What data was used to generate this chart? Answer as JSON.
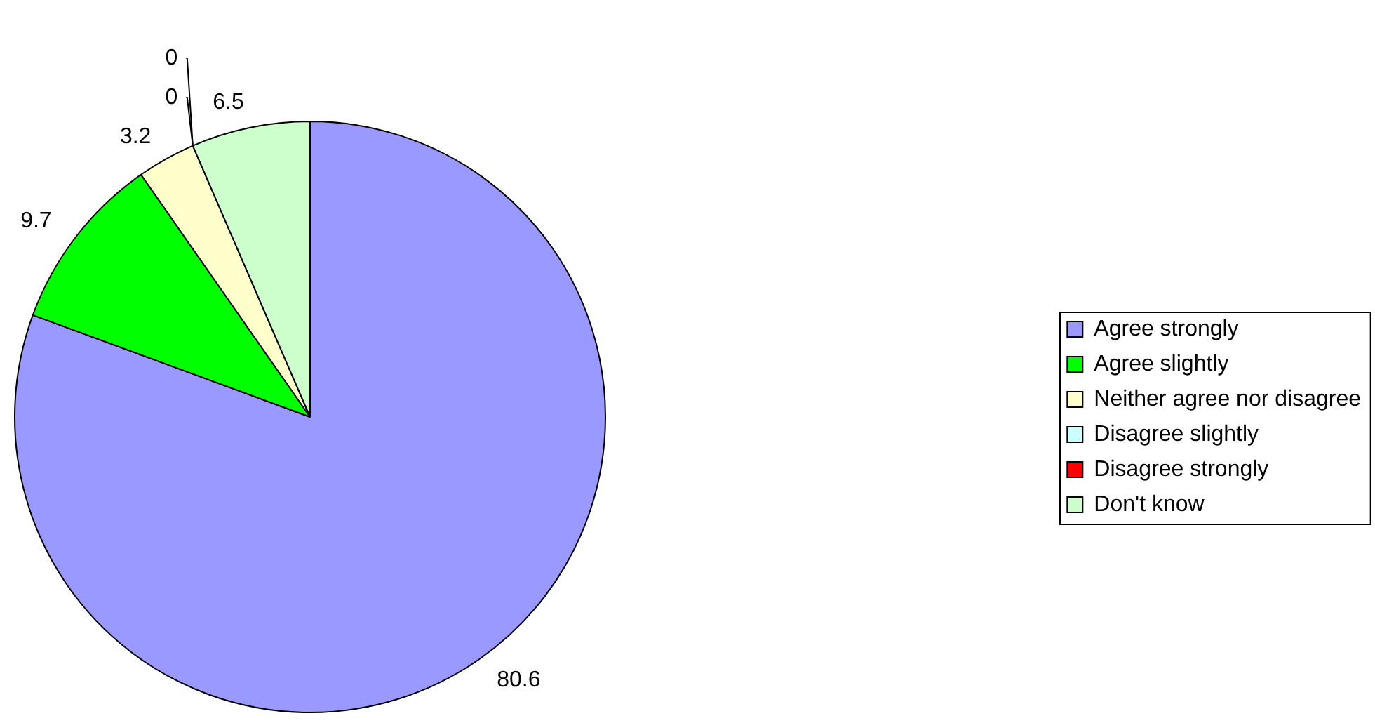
{
  "chart_data": {
    "type": "pie",
    "categories": [
      "Agree strongly",
      "Agree slightly",
      "Neither agree nor disagree",
      "Disagree slightly",
      "Disagree strongly",
      "Don't know"
    ],
    "values": [
      80.6,
      9.7,
      3.2,
      0,
      0,
      6.5
    ],
    "colors": [
      "#9999ff",
      "#00ff00",
      "#ffffcc",
      "#ccffff",
      "#ff0000",
      "#ccffcc"
    ],
    "value_labels": [
      "80.6",
      "9.7",
      "3.2",
      "0",
      "0",
      "6.5"
    ],
    "legend": "right"
  }
}
